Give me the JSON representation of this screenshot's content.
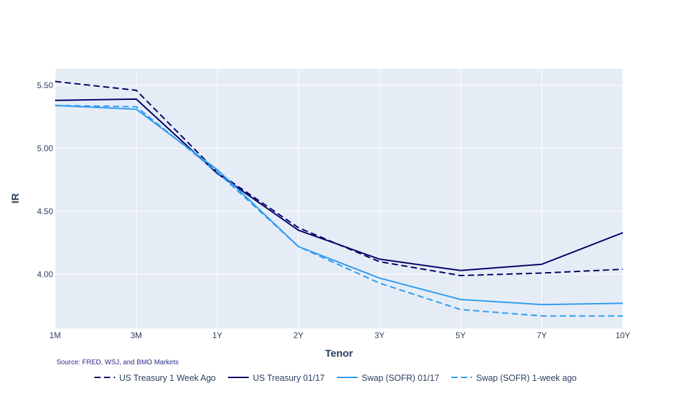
{
  "chart_data": {
    "type": "line",
    "title": "",
    "xlabel": "Tenor",
    "ylabel": "IR",
    "categories": [
      "1M",
      "3M",
      "1Y",
      "2Y",
      "3Y",
      "5Y",
      "7Y",
      "10Y"
    ],
    "y_ticks": [
      "4.00",
      "4.50",
      "5.00",
      "5.50"
    ],
    "y_tick_values": [
      4.0,
      4.5,
      5.0,
      5.5
    ],
    "ylim": [
      3.57,
      5.63
    ],
    "grid": true,
    "legend_position": "bottom",
    "annotation": "Source: FRED, WSJ, and BMO Markets",
    "series": [
      {
        "name": "US Treasury 1 Week Ago",
        "color": "#000066",
        "dash": "dash",
        "values": [
          5.53,
          5.46,
          4.81,
          4.37,
          4.1,
          3.99,
          4.01,
          4.04
        ]
      },
      {
        "name": "US Treasury 01/17",
        "color": "#000066",
        "dash": "solid",
        "values": [
          5.38,
          5.39,
          4.8,
          4.35,
          4.12,
          4.03,
          4.08,
          4.33
        ]
      },
      {
        "name": "Swap (SOFR) 01/17",
        "color": "#2e9bf0",
        "dash": "solid",
        "values": [
          5.34,
          5.31,
          4.83,
          4.22,
          3.97,
          3.8,
          3.76,
          3.77
        ]
      },
      {
        "name": "Swap (SOFR) 1-week ago",
        "color": "#2e9bf0",
        "dash": "dash",
        "values": [
          5.34,
          5.33,
          4.81,
          4.22,
          3.93,
          3.72,
          3.67,
          3.67
        ]
      }
    ]
  }
}
